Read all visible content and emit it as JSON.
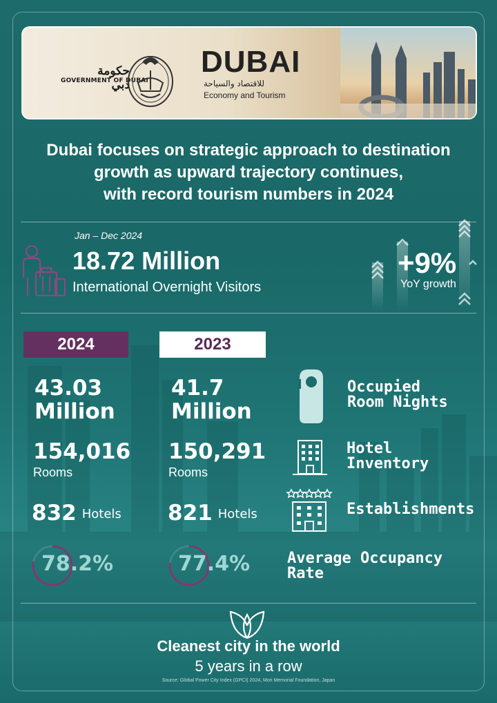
{
  "header": {
    "government_ar": "حكومة دبي",
    "government_en": "GOVERNMENT OF DUBAI",
    "brand": "DUBAI",
    "brand_ar": "للاقتصاد والسياحة",
    "brand_en": "Economy and Tourism"
  },
  "headline": {
    "line1": "Dubai focuses on strategic approach to destination",
    "line2": "growth as upward trajectory continues,",
    "line3": "with record tourism numbers in 2024"
  },
  "visitors": {
    "period": "Jan – Dec 2024",
    "value": "18.72 Million",
    "label": "International Overnight Visitors",
    "growth_value": "+9%",
    "growth_label": "YoY growth"
  },
  "years": {
    "current": "2024",
    "previous": "2023"
  },
  "stats_2024": {
    "room_nights_line1": "43.03",
    "room_nights_line2": "Million",
    "rooms_value": "154,016",
    "rooms_label": "Rooms",
    "hotels_value": "832",
    "hotels_label": "Hotels",
    "occupancy": "78.2%"
  },
  "stats_2023": {
    "room_nights_line1": "41.7",
    "room_nights_line2": "Million",
    "rooms_value": "150,291",
    "rooms_label": "Rooms",
    "hotels_value": "821",
    "hotels_label": "Hotels",
    "occupancy": "77.4%"
  },
  "metrics": {
    "room_nights_1": "Occupied",
    "room_nights_2": "Room Nights",
    "inventory_1": "Hotel",
    "inventory_2": "Inventory",
    "establishments": "Establishments",
    "occupancy_1": "Average Occupancy",
    "occupancy_2": "Rate"
  },
  "footer": {
    "title": "Cleanest city in the world",
    "subtitle": "5 years in a row",
    "source": "Source: Global Power City Index (GPCI) 2024, Mori Memorial Foundation, Japan"
  },
  "colors": {
    "background": "#1d6b6b",
    "accent_purple": "#64305f",
    "occupancy_text": "#9fd6d4"
  }
}
